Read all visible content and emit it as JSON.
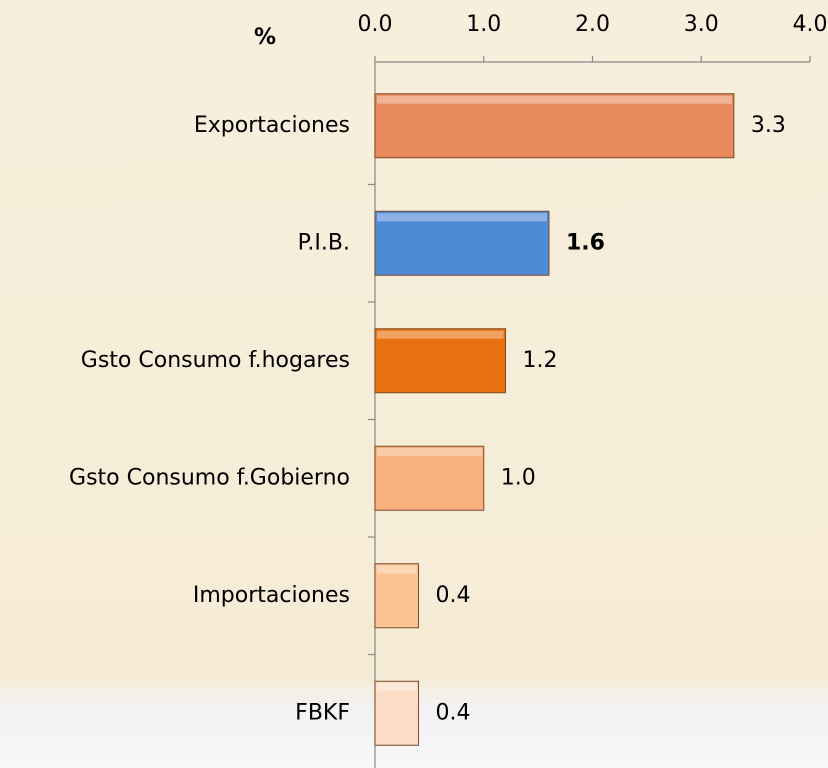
{
  "chart_data": {
    "type": "bar",
    "orientation": "horizontal",
    "title": "%",
    "categories": [
      "Exportaciones",
      "P.I.B.",
      "Gsto Consumo f.hogares",
      "Gsto Consumo f.Gobierno",
      "Importaciones",
      "FBKF"
    ],
    "values": [
      3.3,
      1.6,
      1.2,
      1.0,
      0.4,
      0.4
    ],
    "value_labels": [
      "3.3",
      "1.6",
      "1.2",
      "1.0",
      "0.4",
      "0.4"
    ],
    "colors": [
      "#e88a5c",
      "#4f8ad6",
      "#e8700e",
      "#f8b07c",
      "#fbc393",
      "#fddcc6"
    ],
    "bold_index": 1,
    "xlim": [
      0,
      4
    ],
    "xticks": [
      {
        "value": 0,
        "label": "0.0"
      },
      {
        "value": 1,
        "label": "1.0"
      },
      {
        "value": 2,
        "label": "2.0"
      },
      {
        "value": 3,
        "label": "3.0"
      },
      {
        "value": 4,
        "label": "4.0"
      }
    ],
    "grid": false
  }
}
